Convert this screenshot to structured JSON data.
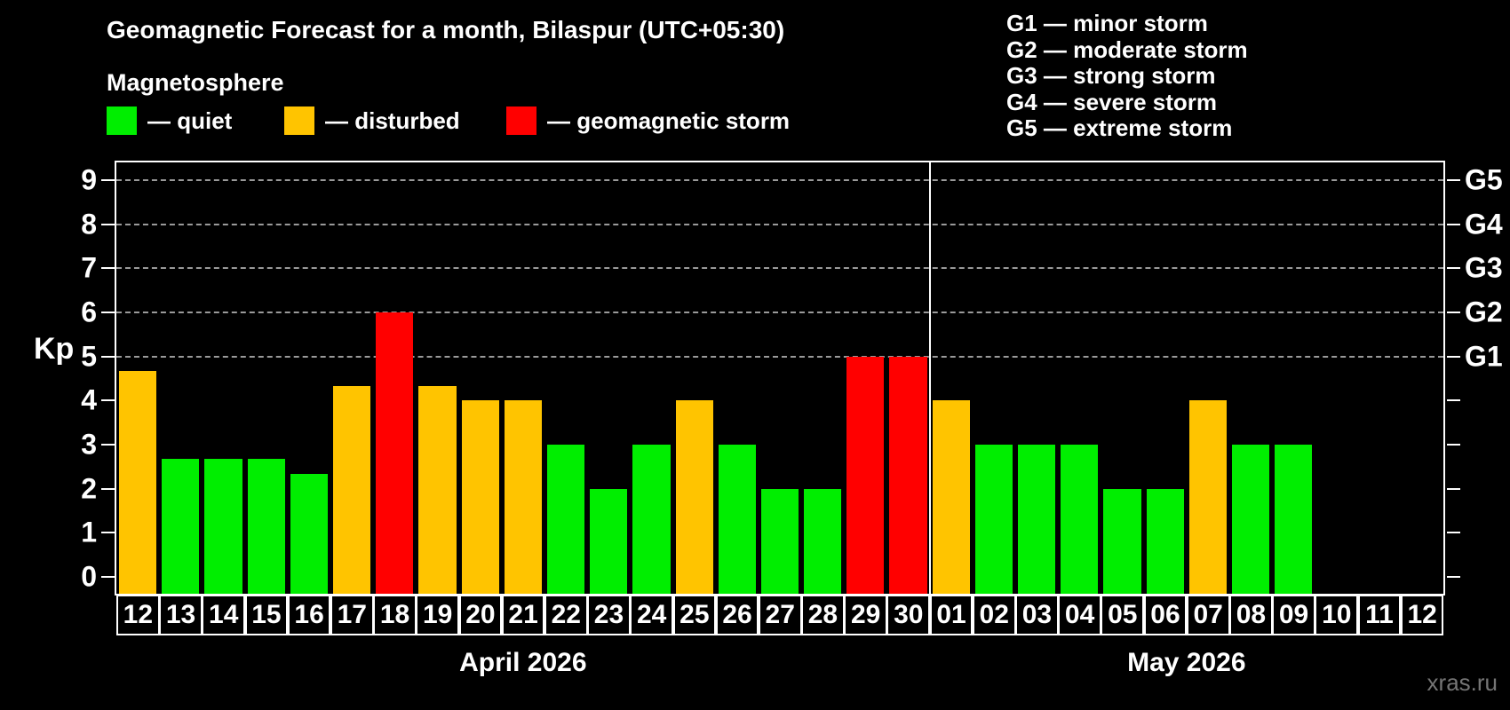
{
  "title": "Geomagnetic Forecast for a month, Bilaspur (UTC+05:30)",
  "subtitle": "Magnetosphere",
  "watermark": "xras.ru",
  "palette": {
    "quiet": "#00ee00",
    "disturbed": "#ffc400",
    "storm": "#ff0000",
    "background": "#000000",
    "foreground": "#ffffff",
    "grid": "#9a9a9a"
  },
  "legend": {
    "items": [
      {
        "name": "quiet",
        "label": "— quiet",
        "color": "#00ee00",
        "x": 120
      },
      {
        "name": "disturbed",
        "label": "— disturbed",
        "color": "#ffc400",
        "x": 320
      },
      {
        "name": "storm",
        "label": "— geomagnetic storm",
        "color": "#ff0000",
        "x": 570
      }
    ]
  },
  "g_legend": [
    "G1 — minor storm",
    "G2 — moderate storm",
    "G3 — strong storm",
    "G4 — severe storm",
    "G5 — extreme storm"
  ],
  "chart_data": {
    "type": "bar",
    "title": "Geomagnetic Forecast for a month, Bilaspur (UTC+05:30)",
    "xlabel": "",
    "ylabel": "Kp",
    "ylim": [
      0,
      9
    ],
    "yticks": [
      0,
      1,
      2,
      3,
      4,
      5,
      6,
      7,
      8,
      9
    ],
    "gridlines_at_kp": [
      5,
      6,
      7,
      8,
      9
    ],
    "grid": "dashed horizontal at G-storm levels only",
    "right_axis_labels": [
      {
        "label": "G1",
        "kp": 5
      },
      {
        "label": "G2",
        "kp": 6
      },
      {
        "label": "G3",
        "kp": 7
      },
      {
        "label": "G4",
        "kp": 8
      },
      {
        "label": "G5",
        "kp": 9
      }
    ],
    "months": [
      {
        "label": "April 2026",
        "days": [
          "12",
          "13",
          "14",
          "15",
          "16",
          "17",
          "18",
          "19",
          "20",
          "21",
          "22",
          "23",
          "24",
          "25",
          "26",
          "27",
          "28",
          "29",
          "30"
        ]
      },
      {
        "label": "May 2026",
        "days": [
          "01",
          "02",
          "03",
          "04",
          "05",
          "06",
          "07",
          "08",
          "09",
          "10",
          "11",
          "12"
        ]
      }
    ],
    "values": [
      {
        "month": "April 2026",
        "day": "12",
        "kp": 4.67,
        "level": "disturbed"
      },
      {
        "month": "April 2026",
        "day": "13",
        "kp": 2.67,
        "level": "quiet"
      },
      {
        "month": "April 2026",
        "day": "14",
        "kp": 2.67,
        "level": "quiet"
      },
      {
        "month": "April 2026",
        "day": "15",
        "kp": 2.67,
        "level": "quiet"
      },
      {
        "month": "April 2026",
        "day": "16",
        "kp": 2.33,
        "level": "quiet"
      },
      {
        "month": "April 2026",
        "day": "17",
        "kp": 4.33,
        "level": "disturbed"
      },
      {
        "month": "April 2026",
        "day": "18",
        "kp": 6.0,
        "level": "storm"
      },
      {
        "month": "April 2026",
        "day": "19",
        "kp": 4.33,
        "level": "disturbed"
      },
      {
        "month": "April 2026",
        "day": "20",
        "kp": 4.0,
        "level": "disturbed"
      },
      {
        "month": "April 2026",
        "day": "21",
        "kp": 4.0,
        "level": "disturbed"
      },
      {
        "month": "April 2026",
        "day": "22",
        "kp": 3.0,
        "level": "quiet"
      },
      {
        "month": "April 2026",
        "day": "23",
        "kp": 2.0,
        "level": "quiet"
      },
      {
        "month": "April 2026",
        "day": "24",
        "kp": 3.0,
        "level": "quiet"
      },
      {
        "month": "April 2026",
        "day": "25",
        "kp": 4.0,
        "level": "disturbed"
      },
      {
        "month": "April 2026",
        "day": "26",
        "kp": 3.0,
        "level": "quiet"
      },
      {
        "month": "April 2026",
        "day": "27",
        "kp": 2.0,
        "level": "quiet"
      },
      {
        "month": "April 2026",
        "day": "28",
        "kp": 2.0,
        "level": "quiet"
      },
      {
        "month": "April 2026",
        "day": "29",
        "kp": 5.0,
        "level": "storm"
      },
      {
        "month": "April 2026",
        "day": "30",
        "kp": 5.0,
        "level": "storm"
      },
      {
        "month": "May 2026",
        "day": "01",
        "kp": 4.0,
        "level": "disturbed"
      },
      {
        "month": "May 2026",
        "day": "02",
        "kp": 3.0,
        "level": "quiet"
      },
      {
        "month": "May 2026",
        "day": "03",
        "kp": 3.0,
        "level": "quiet"
      },
      {
        "month": "May 2026",
        "day": "04",
        "kp": 3.0,
        "level": "quiet"
      },
      {
        "month": "May 2026",
        "day": "05",
        "kp": 2.0,
        "level": "quiet"
      },
      {
        "month": "May 2026",
        "day": "06",
        "kp": 2.0,
        "level": "quiet"
      },
      {
        "month": "May 2026",
        "day": "07",
        "kp": 4.0,
        "level": "disturbed"
      },
      {
        "month": "May 2026",
        "day": "08",
        "kp": 3.0,
        "level": "quiet"
      },
      {
        "month": "May 2026",
        "day": "09",
        "kp": 3.0,
        "level": "quiet"
      },
      {
        "month": "May 2026",
        "day": "10",
        "kp": null,
        "level": null
      },
      {
        "month": "May 2026",
        "day": "11",
        "kp": null,
        "level": null
      },
      {
        "month": "May 2026",
        "day": "12",
        "kp": null,
        "level": null
      }
    ],
    "legend_position": "top",
    "month_separator": "white vertical line between April 30 and May 01"
  }
}
